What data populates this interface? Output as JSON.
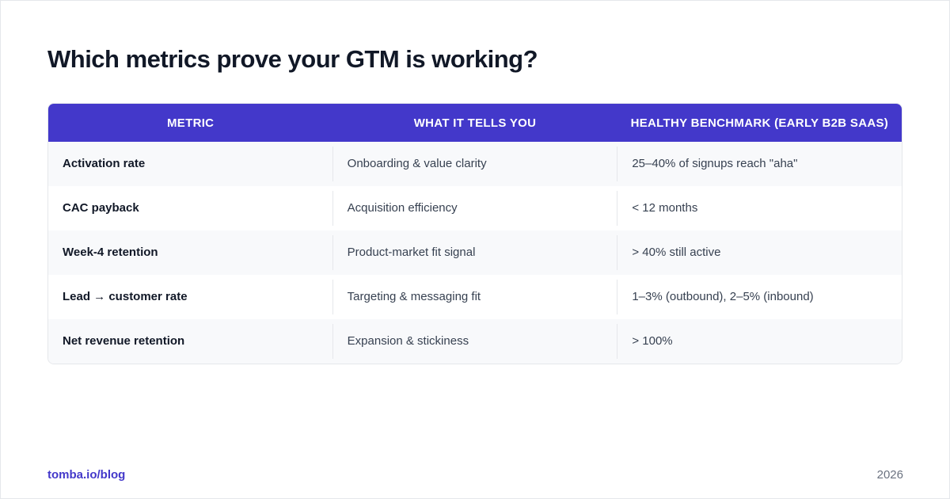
{
  "title": "Which metrics prove your GTM is working?",
  "table": {
    "header": [
      "METRIC",
      "WHAT IT TELLS YOU",
      "HEALTHY BENCHMARK (EARLY B2B SAAS)"
    ],
    "rows": [
      [
        "Activation rate",
        "Onboarding & value clarity",
        "25–40% of signups reach \"aha\""
      ],
      [
        "CAC payback",
        "Acquisition efficiency",
        "< 12 months"
      ],
      [
        "Week-4 retention",
        "Product-market fit signal",
        "> 40% still active"
      ],
      [
        "Lead → customer rate",
        "Targeting & messaging fit",
        "1–3% (outbound), 2–5% (inbound)"
      ],
      [
        "Net revenue retention",
        "Expansion & stickiness",
        "> 100%"
      ]
    ]
  },
  "footer": {
    "source": "tomba.io/blog",
    "year": "2026"
  }
}
